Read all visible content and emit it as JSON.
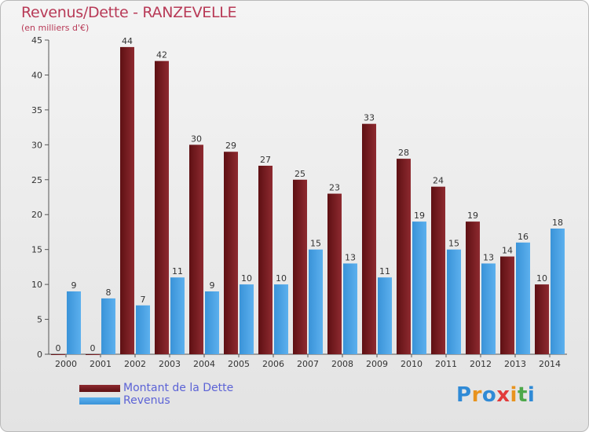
{
  "chart_data": {
    "type": "bar",
    "title": "Revenus/Dette - RANZEVELLE",
    "subtitle": "(en milliers d'€)",
    "categories": [
      "2000",
      "2001",
      "2002",
      "2003",
      "2004",
      "2005",
      "2006",
      "2007",
      "2008",
      "2009",
      "2010",
      "2011",
      "2012",
      "2013",
      "2014"
    ],
    "series": [
      {
        "name": "Montant de la Dette",
        "color": "#7a1a1d",
        "values": [
          0,
          0,
          44,
          42,
          30,
          29,
          27,
          25,
          23,
          33,
          28,
          24,
          19,
          14,
          10
        ]
      },
      {
        "name": "Revenus",
        "color": "#3f9be0",
        "values": [
          9,
          8,
          7,
          11,
          9,
          10,
          10,
          15,
          13,
          11,
          19,
          15,
          13,
          16,
          18
        ]
      }
    ],
    "ylim": [
      0,
      45
    ],
    "yticks": [
      0,
      5,
      10,
      15,
      20,
      25,
      30,
      35,
      40,
      45
    ],
    "grid": false,
    "legend_position": "bottom-left"
  },
  "logo": {
    "text": "Proxiti",
    "letters": [
      {
        "ch": "P",
        "color": "#2f8ad6"
      },
      {
        "ch": "r",
        "color": "#e8931e"
      },
      {
        "ch": "o",
        "color": "#2f8ad6"
      },
      {
        "ch": "x",
        "color": "#e23a3a"
      },
      {
        "ch": "i",
        "color": "#e8931e"
      },
      {
        "ch": "t",
        "color": "#4da84a"
      },
      {
        "ch": "i",
        "color": "#2f8ad6"
      }
    ]
  }
}
